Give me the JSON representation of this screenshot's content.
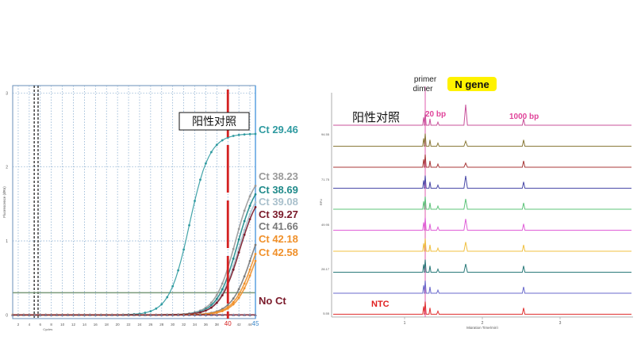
{
  "chart_data": [
    {
      "type": "line",
      "x_axis": {
        "label": "Cycles",
        "ticks": [
          2,
          4,
          6,
          8,
          10,
          12,
          14,
          16,
          18,
          20,
          22,
          24,
          26,
          28,
          30,
          32,
          34,
          36,
          38,
          40,
          42,
          44
        ],
        "end_label": "45",
        "xlim": [
          1,
          45
        ]
      },
      "y_axis": {
        "label": "Fluorescence (dRn)",
        "ticks": [
          "0",
          "1",
          "2",
          "3"
        ],
        "ylim": [
          -0.05,
          3.1
        ]
      },
      "threshold": 0.3,
      "marker_x": 40,
      "marker_label": "40",
      "annotation": "阳性对照",
      "series": [
        {
          "name": "Ct 29.46",
          "ct": 29.46,
          "plateau": 2.45,
          "color": "#2e9aa0"
        },
        {
          "name": "Ct 38.23",
          "ct": 38.23,
          "plateau": 1.98,
          "color": "#9a9a9a"
        },
        {
          "name": "Ct 38.69",
          "ct": 38.69,
          "plateau": 1.9,
          "color": "#1f8a8a"
        },
        {
          "name": "Ct 39.08",
          "ct": 39.08,
          "plateau": 1.82,
          "color": "#a9c0cc"
        },
        {
          "name": "Ct 39.27",
          "ct": 39.27,
          "plateau": 1.76,
          "color": "#7a1a2a"
        },
        {
          "name": "Ct 41.66",
          "ct": 41.66,
          "plateau": 1.6,
          "color": "#7a7a7a"
        },
        {
          "name": "Ct 42.18",
          "ct": 42.18,
          "plateau": 1.55,
          "color": "#f0902a"
        },
        {
          "name": "Ct 42.58",
          "ct": 42.58,
          "plateau": 1.5,
          "color": "#f0902a"
        },
        {
          "name": "No Ct",
          "ct": null,
          "plateau": 0.0,
          "color": "#7a1a2a"
        }
      ]
    },
    {
      "type": "line",
      "x_axis": {
        "label": "Migration Time(min)",
        "ticks": [
          "1",
          "2",
          "3"
        ]
      },
      "y_axis": {
        "label": "RFU",
        "tick_labels": [
          "5.55",
          "28.17",
          "49.95",
          "71.75",
          "94.55"
        ]
      },
      "header_labels": {
        "primer_dimer": "primer\ndimer",
        "gene": "N gene"
      },
      "peak_labels": {
        "left": "20 bp",
        "right": "1000 bp"
      },
      "annotation": "阳性对照",
      "ntc_label": "NTC",
      "traces": [
        {
          "color": "#c8509a",
          "gene_peak": 1.0
        },
        {
          "color": "#8a7a3a",
          "gene_peak": 0.25
        },
        {
          "color": "#a83a3a",
          "gene_peak": 0.2
        },
        {
          "color": "#4a4aa8",
          "gene_peak": 0.6
        },
        {
          "color": "#5ec47a",
          "gene_peak": 0.5
        },
        {
          "color": "#e060d8",
          "gene_peak": 0.55
        },
        {
          "color": "#f0c040",
          "gene_peak": 0.45
        },
        {
          "color": "#2a7a7a",
          "gene_peak": 0.4
        },
        {
          "color": "#6a6acc",
          "gene_peak": 0.0
        },
        {
          "color": "#e03030",
          "gene_peak": 0.0
        }
      ]
    }
  ]
}
